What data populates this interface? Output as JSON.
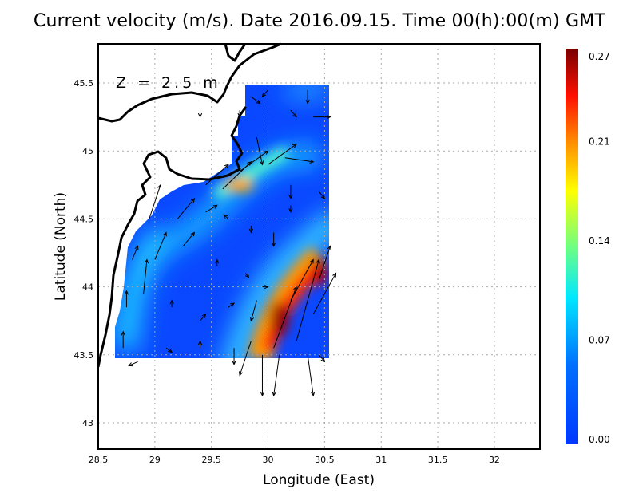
{
  "chart_data": {
    "type": "heatmap",
    "title": "Current velocity (m/s). Date 2016.09.15. Time 00(h):00(m) GMT",
    "xlabel": "Longitude (East)",
    "ylabel": "Latitude (North)",
    "annotation": "Z = 2.5 m",
    "xlim": [
      28.5,
      32.4
    ],
    "ylim": [
      42.8,
      45.8
    ],
    "xticks": [
      "28.5",
      "29",
      "29.5",
      "30",
      "30.5",
      "31",
      "31.5",
      "32"
    ],
    "yticks": [
      "43",
      "43.5",
      "44",
      "44.5",
      "45",
      "45.5"
    ],
    "grid": true,
    "colorbar": {
      "min": 0.0,
      "max": 0.27,
      "ticks": [
        "0.00",
        "0.07",
        "0.14",
        "0.21",
        "0.27"
      ]
    },
    "arrows": [
      [
        28.72,
        43.55,
        0.0,
        0.12
      ],
      [
        28.85,
        43.45,
        -0.08,
        -0.03
      ],
      [
        29.1,
        43.55,
        0.05,
        -0.03
      ],
      [
        29.4,
        43.55,
        0.0,
        0.05
      ],
      [
        29.7,
        43.55,
        0.0,
        -0.12
      ],
      [
        28.75,
        43.85,
        0.0,
        0.12
      ],
      [
        28.9,
        43.95,
        0.03,
        0.25
      ],
      [
        29.15,
        43.85,
        0.0,
        0.05
      ],
      [
        29.4,
        43.75,
        0.05,
        0.05
      ],
      [
        29.65,
        43.85,
        0.05,
        0.03
      ],
      [
        29.85,
        43.6,
        -0.1,
        -0.25
      ],
      [
        29.95,
        43.5,
        0.0,
        -0.3
      ],
      [
        30.05,
        43.55,
        0.2,
        0.45
      ],
      [
        30.1,
        43.5,
        -0.05,
        -0.3
      ],
      [
        30.25,
        43.6,
        0.2,
        0.6
      ],
      [
        30.35,
        43.5,
        0.05,
        -0.3
      ],
      [
        30.45,
        43.5,
        0.05,
        -0.05
      ],
      [
        29.9,
        43.9,
        -0.05,
        -0.15
      ],
      [
        30.2,
        43.9,
        0.2,
        0.3
      ],
      [
        30.4,
        43.8,
        0.2,
        0.3
      ],
      [
        30.45,
        44.05,
        0.1,
        0.25
      ],
      [
        28.8,
        44.2,
        0.05,
        0.1
      ],
      [
        29.0,
        44.2,
        0.1,
        0.2
      ],
      [
        29.25,
        44.3,
        0.1,
        0.1
      ],
      [
        29.55,
        44.15,
        0.0,
        0.05
      ],
      [
        29.8,
        44.1,
        0.03,
        -0.03
      ],
      [
        29.95,
        44.0,
        0.05,
        0.0
      ],
      [
        28.95,
        44.5,
        0.1,
        0.25
      ],
      [
        29.2,
        44.5,
        0.15,
        0.15
      ],
      [
        29.45,
        44.55,
        0.1,
        0.05
      ],
      [
        29.65,
        44.5,
        -0.04,
        0.03
      ],
      [
        29.85,
        44.45,
        0.0,
        -0.05
      ],
      [
        30.05,
        44.4,
        0.0,
        -0.1
      ],
      [
        30.2,
        44.6,
        0.0,
        -0.05
      ],
      [
        29.45,
        44.75,
        0.2,
        0.15
      ],
      [
        29.6,
        44.72,
        0.25,
        0.2
      ],
      [
        29.75,
        44.85,
        0.25,
        0.15
      ],
      [
        30.0,
        44.9,
        0.25,
        0.15
      ],
      [
        30.2,
        44.75,
        0.0,
        -0.1
      ],
      [
        30.45,
        44.7,
        0.05,
        -0.05
      ],
      [
        29.4,
        45.3,
        0.0,
        -0.05
      ],
      [
        29.75,
        45.3,
        0.0,
        -0.05
      ],
      [
        29.9,
        45.1,
        0.05,
        -0.2
      ],
      [
        30.2,
        45.3,
        0.05,
        -0.05
      ],
      [
        30.4,
        45.25,
        0.15,
        0.0
      ],
      [
        30.15,
        44.95,
        0.25,
        -0.03
      ],
      [
        29.85,
        45.4,
        0.08,
        -0.05
      ],
      [
        30.0,
        45.45,
        -0.05,
        -0.05
      ],
      [
        30.35,
        45.45,
        0.0,
        -0.1
      ]
    ]
  }
}
